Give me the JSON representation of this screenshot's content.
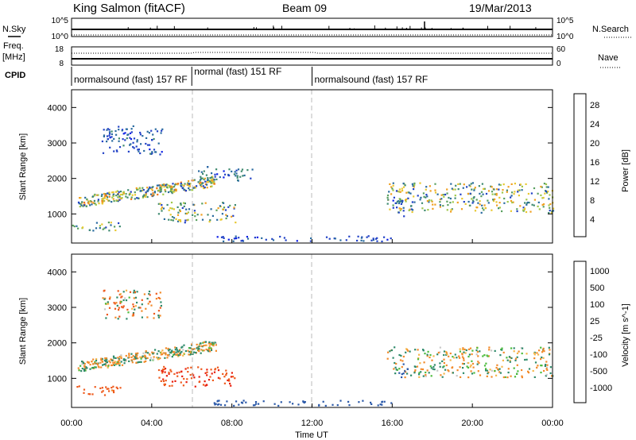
{
  "header": {
    "station": "King Salmon (fitACF)",
    "beam": "Beam 09",
    "date": "19/Mar/2013"
  },
  "status_panel": {
    "nsky_label": "N.Sky",
    "nsky_ticks": [
      "10^5",
      "10^0"
    ],
    "nsearch_label": "N.Search",
    "nsearch_ticks": [
      "10^5",
      "10^0"
    ],
    "freq_label_1": "Freq.",
    "freq_label_2": "[MHz]",
    "freq_ticks": [
      "18",
      "8"
    ],
    "nave_label": "Nave",
    "nave_ticks": [
      "60",
      "0"
    ],
    "cpid_label": "CPID"
  },
  "cpid_segments": [
    {
      "start_hour": 0.0,
      "end_hour": 6.0,
      "label": "normalsound (fast) 157 RF"
    },
    {
      "start_hour": 6.0,
      "end_hour": 12.0,
      "label": "normal (fast) 151 RF"
    },
    {
      "start_hour": 12.0,
      "end_hour": 24.0,
      "label": "normalsound (fast) 157 RF"
    }
  ],
  "x_axis": {
    "label": "Time UT",
    "ticks": [
      "00:00",
      "04:00",
      "08:00",
      "12:00",
      "16:00",
      "20:00",
      "00:00"
    ],
    "range_hours": [
      0,
      24
    ]
  },
  "y_axis": {
    "label": "Slant Range [km]",
    "ticks": [
      "1000",
      "2000",
      "3000",
      "4000"
    ],
    "range_km": [
      180,
      4500
    ]
  },
  "power_colorbar": {
    "label": "Power [dB]",
    "ticks": [
      "4",
      "8",
      "12",
      "16",
      "20",
      "24",
      "28"
    ],
    "colors": [
      "#0b1ee6",
      "#2242c6",
      "#2a6ba0",
      "#3f8a70",
      "#5aa060",
      "#9fc84a",
      "#e8c830",
      "#f0a020",
      "#f07818",
      "#f04c10",
      "#e81e0c"
    ]
  },
  "velocity_colorbar": {
    "label": "Velocity [m s^-1]",
    "ticks": [
      "1000",
      "500",
      "100",
      "25",
      "-25",
      "-100",
      "-500",
      "-1000"
    ],
    "colors": [
      "#1f2cc0",
      "#2a58a8",
      "#2e8a6a",
      "#4cbc3c",
      "#c8c8c8",
      "#f6b64a",
      "#f28a2a",
      "#ee5a1c",
      "#e81e0c"
    ]
  },
  "chart_data": [
    {
      "type": "heatmap",
      "name": "power",
      "x_unit": "hours UT",
      "y_unit": "km",
      "xlim": [
        0,
        24
      ],
      "ylim": [
        180,
        4500
      ],
      "value_unit": "dB",
      "scatter_bands": [
        {
          "t0": 0.3,
          "t1": 7.2,
          "r0": 1200,
          "r1": 2350,
          "vmin": 6,
          "vmax": 24
        },
        {
          "t0": 6.2,
          "t1": 9.0,
          "r0": 1950,
          "r1": 2350,
          "vmin": 4,
          "vmax": 12
        },
        {
          "t0": 4.3,
          "t1": 8.2,
          "r0": 780,
          "r1": 1350,
          "vmin": 6,
          "vmax": 22
        },
        {
          "t0": 0.0,
          "t1": 2.5,
          "r0": 550,
          "r1": 800,
          "vmin": 6,
          "vmax": 18
        },
        {
          "t0": 1.5,
          "t1": 4.5,
          "r0": 2700,
          "r1": 3500,
          "vmin": 4,
          "vmax": 10
        },
        {
          "t0": 15.7,
          "t1": 24.0,
          "r0": 1050,
          "r1": 1900,
          "vmin": 6,
          "vmax": 22
        },
        {
          "t0": 16.0,
          "t1": 17.0,
          "r0": 950,
          "r1": 1500,
          "vmin": 4,
          "vmax": 10
        },
        {
          "t0": 7.0,
          "t1": 16.0,
          "r0": 250,
          "r1": 400,
          "vmin": 4,
          "vmax": 8
        }
      ]
    },
    {
      "type": "heatmap",
      "name": "velocity",
      "x_unit": "hours UT",
      "y_unit": "km",
      "xlim": [
        0,
        24
      ],
      "ylim": [
        180,
        4500
      ],
      "value_unit": "m s^-1",
      "scatter_bands": [
        {
          "t0": 0.3,
          "t1": 7.2,
          "r0": 1200,
          "r1": 2350,
          "vmin": -50,
          "vmax": 50
        },
        {
          "t0": 4.3,
          "t1": 8.2,
          "r0": 780,
          "r1": 1350,
          "vmin": -400,
          "vmax": -50
        },
        {
          "t0": 0.0,
          "t1": 2.5,
          "r0": 550,
          "r1": 800,
          "vmin": -200,
          "vmax": -50
        },
        {
          "t0": 1.5,
          "t1": 4.5,
          "r0": 2700,
          "r1": 3500,
          "vmin": -100,
          "vmax": 50
        },
        {
          "t0": 15.7,
          "t1": 24.0,
          "r0": 1050,
          "r1": 1900,
          "vmin": -30,
          "vmax": 30
        },
        {
          "t0": 16.3,
          "t1": 16.8,
          "r0": 1050,
          "r1": 1450,
          "vmin": 100,
          "vmax": 200
        },
        {
          "t0": 7.0,
          "t1": 16.0,
          "r0": 250,
          "r1": 400,
          "vmin": 50,
          "vmax": 150
        }
      ]
    }
  ]
}
